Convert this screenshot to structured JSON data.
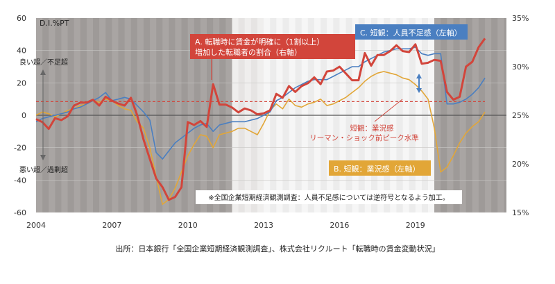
{
  "chart_data": {
    "type": "line",
    "y_unit_label": "D.I.%PT",
    "x_ticks": [
      "2004",
      "2007",
      "2010",
      "2013",
      "2016",
      "2019"
    ],
    "y_left_ticks": [
      "60",
      "40",
      "20",
      "0",
      "-20",
      "-40",
      "-60"
    ],
    "y_left_range": [
      -60,
      60
    ],
    "y_right_ticks": [
      "35%",
      "30%",
      "25%",
      "20%",
      "15%"
    ],
    "y_right_range": [
      15,
      35
    ],
    "x_range": [
      2004,
      2022.6
    ],
    "upper_side_label": "良い超／不足超",
    "lower_side_label": "悪い超／過剰超",
    "reference_label_line1": "短観：業況感",
    "reference_label_line2": "リーマン・ショック前ピーク水準",
    "reference_level": 26.4,
    "note": "※全国企業短期経済観測調査：人員不足感については逆符号となるよう加工。",
    "source": "出所：日本銀行「全国企業短期経済観測調査」、株式会社リクルート「転職時の賃金変動状況」",
    "series": [
      {
        "key": "A",
        "axis": "right",
        "color": "#d2453b",
        "label_line1": "A. 転職時に賃金が明確に（1割以上）",
        "label_line2": "増加した転職者の割合（右軸）",
        "x": [
          2004.0,
          2004.25,
          2004.5,
          2004.75,
          2005.0,
          2005.25,
          2005.5,
          2005.75,
          2006.0,
          2006.25,
          2006.5,
          2006.75,
          2007.0,
          2007.25,
          2007.5,
          2007.75,
          2008.0,
          2008.25,
          2008.5,
          2008.75,
          2009.0,
          2009.25,
          2009.5,
          2009.75,
          2010.0,
          2010.25,
          2010.5,
          2010.75,
          2011.0,
          2011.25,
          2011.5,
          2011.75,
          2012.0,
          2012.25,
          2012.5,
          2012.75,
          2013.0,
          2013.25,
          2013.5,
          2013.75,
          2014.0,
          2014.25,
          2014.5,
          2014.75,
          2015.0,
          2015.25,
          2015.5,
          2015.75,
          2016.0,
          2016.25,
          2016.5,
          2016.75,
          2017.0,
          2017.25,
          2017.5,
          2017.75,
          2018.0,
          2018.25,
          2018.5,
          2018.75,
          2019.0,
          2019.25,
          2019.5,
          2019.75,
          2020.0,
          2020.25,
          2020.5,
          2020.75,
          2021.0,
          2021.25,
          2021.5,
          2021.75
        ],
        "values": [
          24.6,
          24.3,
          23.6,
          24.7,
          24.5,
          24.9,
          26.0,
          26.3,
          26.3,
          26.6,
          26.0,
          26.9,
          26.5,
          26.2,
          26.0,
          26.8,
          25.0,
          22.5,
          20.5,
          18.5,
          17.6,
          16.3,
          16.6,
          17.6,
          24.3,
          24.0,
          24.4,
          23.8,
          28.2,
          26.1,
          26.1,
          25.8,
          25.3,
          25.7,
          25.5,
          25.1,
          25.2,
          25.5,
          27.2,
          26.8,
          28.0,
          27.4,
          28.0,
          28.3,
          28.9,
          28.2,
          29.5,
          29.6,
          30.0,
          29.3,
          28.6,
          28.6,
          31.4,
          30.1,
          31.2,
          31.2,
          31.6,
          32.2,
          31.6,
          31.5,
          32.3,
          30.3,
          30.4,
          30.7,
          30.6,
          27.4,
          26.6,
          26.9,
          30.0,
          30.5,
          32.0,
          32.9
        ]
      },
      {
        "key": "C",
        "axis": "left",
        "color": "#4a7fc1",
        "label": "C. 短観：人員不足感（左軸）",
        "x": [
          2004.0,
          2004.25,
          2004.5,
          2004.75,
          2005.0,
          2005.25,
          2005.5,
          2005.75,
          2006.0,
          2006.25,
          2006.5,
          2006.75,
          2007.0,
          2007.25,
          2007.5,
          2007.75,
          2008.0,
          2008.25,
          2008.5,
          2008.75,
          2009.0,
          2009.25,
          2009.5,
          2009.75,
          2010.0,
          2010.25,
          2010.5,
          2010.75,
          2011.0,
          2011.25,
          2011.5,
          2011.75,
          2012.0,
          2012.25,
          2012.5,
          2012.75,
          2013.0,
          2013.25,
          2013.5,
          2013.75,
          2014.0,
          2014.25,
          2014.5,
          2014.75,
          2015.0,
          2015.25,
          2015.5,
          2015.75,
          2016.0,
          2016.25,
          2016.5,
          2016.75,
          2017.0,
          2017.25,
          2017.5,
          2017.75,
          2018.0,
          2018.25,
          2018.5,
          2018.75,
          2019.0,
          2019.25,
          2019.5,
          2019.75,
          2020.0,
          2020.25,
          2020.5,
          2020.75,
          2021.0,
          2021.25,
          2021.5,
          2021.75
        ],
        "values": [
          -4,
          -2,
          -1,
          0,
          1,
          2,
          4,
          5,
          7,
          9,
          11,
          14,
          9,
          10,
          11,
          10,
          6,
          2,
          -3,
          -23,
          -27,
          -22,
          -17,
          -14,
          -11,
          -8,
          -6,
          -5,
          -10,
          -6,
          -5,
          -4,
          -4,
          -4,
          -3,
          -2,
          0,
          2,
          9,
          11,
          14,
          17,
          19,
          21,
          22,
          22,
          22,
          24,
          26,
          28,
          30,
          30,
          33,
          35,
          37,
          39,
          40,
          41,
          41,
          41,
          42,
          38,
          37,
          38,
          38,
          7,
          7,
          8,
          10,
          13,
          17,
          23
        ]
      },
      {
        "key": "B",
        "axis": "left",
        "color": "#e2a637",
        "label": "B. 短観：業況感（左軸）",
        "x": [
          2004.0,
          2004.25,
          2004.5,
          2004.75,
          2005.0,
          2005.25,
          2005.5,
          2005.75,
          2006.0,
          2006.25,
          2006.5,
          2006.75,
          2007.0,
          2007.25,
          2007.5,
          2007.75,
          2008.0,
          2008.25,
          2008.5,
          2008.75,
          2009.0,
          2009.25,
          2009.5,
          2009.75,
          2010.0,
          2010.25,
          2010.5,
          2010.75,
          2011.0,
          2011.25,
          2011.5,
          2011.75,
          2012.0,
          2012.25,
          2012.5,
          2012.75,
          2013.0,
          2013.25,
          2013.5,
          2013.75,
          2014.0,
          2014.25,
          2014.5,
          2014.75,
          2015.0,
          2015.25,
          2015.5,
          2015.75,
          2016.0,
          2016.25,
          2016.5,
          2016.75,
          2017.0,
          2017.25,
          2017.5,
          2017.75,
          2018.0,
          2018.25,
          2018.5,
          2018.75,
          2019.0,
          2019.25,
          2019.5,
          2019.75,
          2020.0,
          2020.25,
          2020.5,
          2020.75,
          2021.0,
          2021.25,
          2021.5,
          2021.75
        ],
        "values": [
          0,
          2,
          1,
          -1,
          1,
          3,
          4,
          6,
          7,
          9,
          8,
          10,
          9,
          6,
          4,
          3,
          -4,
          -8,
          -20,
          -38,
          -55,
          -52,
          -45,
          -35,
          -25,
          -18,
          -12,
          -13,
          -20,
          -12,
          -11,
          -10,
          -8,
          -8,
          -10,
          -12,
          -5,
          3,
          7,
          4,
          10,
          6,
          5,
          7,
          8,
          10,
          6,
          7,
          9,
          11,
          14,
          17,
          21,
          24,
          26,
          27,
          26,
          25,
          23,
          22,
          19,
          15,
          10,
          -8,
          -35,
          -32,
          -25,
          -17,
          -11,
          -7,
          -4,
          2
        ]
      }
    ]
  }
}
